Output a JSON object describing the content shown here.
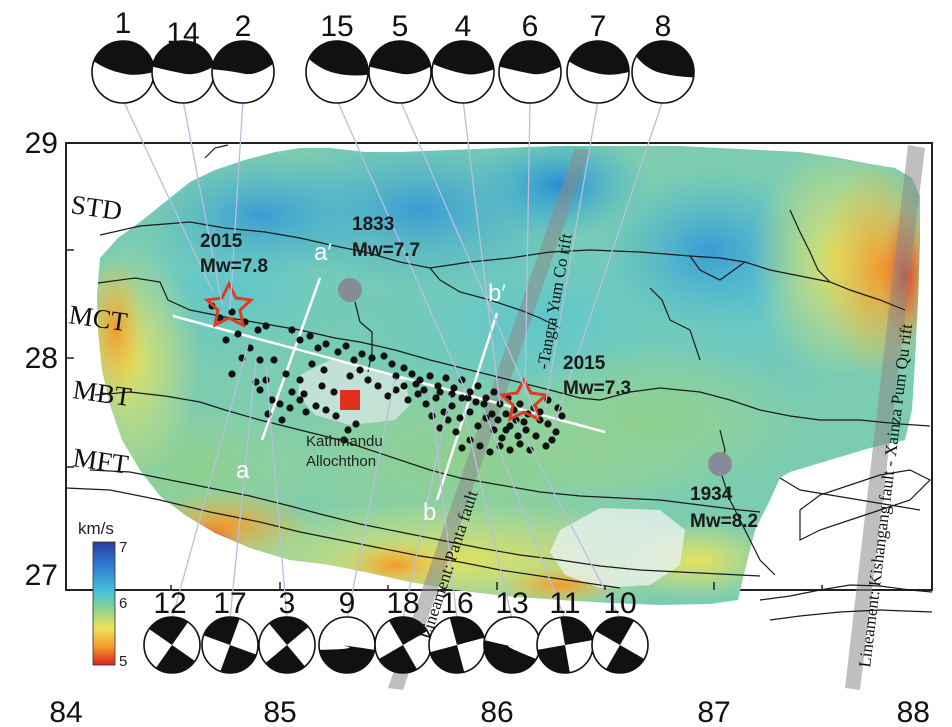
{
  "axes": {
    "x_ticks": [
      "84",
      "85",
      "86",
      "87",
      "88"
    ],
    "y_ticks": [
      "29",
      "28",
      "27"
    ]
  },
  "colorbar": {
    "unit": "km/s",
    "ticks": [
      "7",
      "6",
      "5"
    ],
    "min": 5,
    "max": 7
  },
  "faults": {
    "std": "STD",
    "mct": "MCT",
    "mbt": "MBT",
    "mft": "MFT"
  },
  "earthquakes": {
    "gorkha": {
      "year": "2015",
      "mw": "Mw=7.8"
    },
    "eq1833": {
      "year": "1833",
      "mw": "Mw=7.7"
    },
    "dolakha": {
      "year": "2015",
      "mw": "Mw=7.3"
    },
    "eq1934": {
      "year": "1934",
      "mw": "Mw=8.2"
    }
  },
  "klippe": {
    "line1": "Kathmandu",
    "line2": "Allochthon"
  },
  "profiles": {
    "a": "a",
    "a_prime": "a′",
    "b": "b",
    "b_prime": "b′"
  },
  "lineaments": {
    "panta": "Lineament: Panta fault",
    "tangra": "-Tangra Yum Co rift",
    "kishangang": "Lineament: Kishangang fault - Xainza Pum Qu rift"
  },
  "mechanisms_top": [
    "1",
    "14",
    "2",
    "15",
    "5",
    "4",
    "6",
    "7",
    "8"
  ],
  "mechanisms_bottom": [
    "12",
    "17",
    "3",
    "9",
    "18",
    "16",
    "13",
    "11",
    "10"
  ],
  "colors": {
    "star": "#e03a22",
    "epicenter": "#111111",
    "historic": "#858b97",
    "kathmandu": "#e0301e",
    "profile_line": "#ffffff"
  }
}
